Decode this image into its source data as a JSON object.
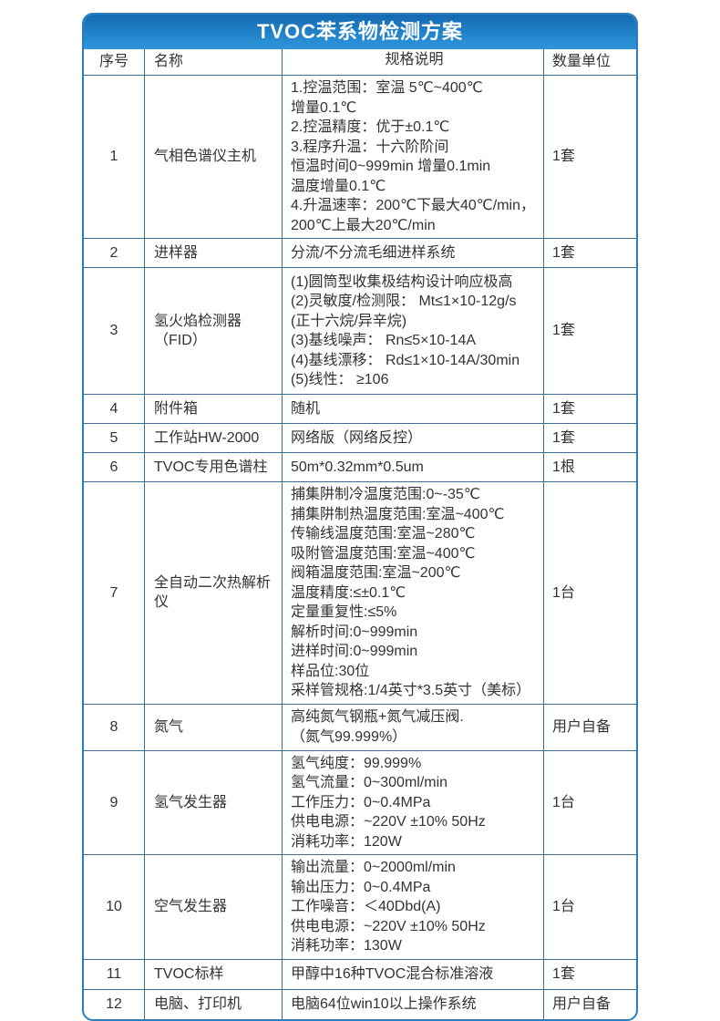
{
  "title": "TVOC苯系物检测方案",
  "colors": {
    "header_blue_top": "#1568b1",
    "header_blue_bottom": "#2e96dc",
    "grid_line": "#3e6d90",
    "outer_border": "#2b7dbd",
    "text": "#333333",
    "title_text": "#ffffff"
  },
  "table": {
    "headers": [
      "序号",
      "名称",
      "规格说明",
      "数量单位"
    ],
    "rows": [
      {
        "no": "1",
        "name": "气相色谱仪主机",
        "spec": [
          "1.控温范围：室温 5℃~400℃",
          "增量0.1℃",
          "2.控温精度：优于±0.1℃",
          "3.程序升温：十六阶阶间",
          "恒温时间0~999min 增量0.1min",
          "温度增量0.1℃",
          "4.升温速率：200℃下最大40℃/min，",
          "200℃上最大20℃/min"
        ],
        "qty": "1套"
      },
      {
        "no": "2",
        "name": "进样器",
        "spec": [
          "分流/不分流毛细进样系统"
        ],
        "qty": "1套"
      },
      {
        "no": "3",
        "name": "氢火焰检测器（FID）",
        "spec": [
          "(1)圆筒型收集极结构设计响应极高",
          "(2)灵敏度/检测限： Mt≤1×10-12g/s",
          "(正十六烷/异辛烷)",
          "(3)基线噪声： Rn≤5×10-14A",
          "(4)基线漂移： Rd≤1×10-14A/30min",
          "(5)线性： ≥106"
        ],
        "qty": "1套"
      },
      {
        "no": "4",
        "name": "附件箱",
        "spec": [
          "随机"
        ],
        "qty": "1套"
      },
      {
        "no": "5",
        "name": "工作站HW-2000",
        "spec": [
          "网络版（网络反控）"
        ],
        "qty": "1套"
      },
      {
        "no": "6",
        "name": "TVOC专用色谱柱",
        "spec": [
          "50m*0.32mm*0.5um"
        ],
        "qty": "1根"
      },
      {
        "no": "7",
        "name": "全自动二次热解析仪",
        "spec": [
          "捕集阱制冷温度范围:0~-35℃",
          "捕集阱制热温度范围:室温~400℃",
          "传输线温度范围:室温~280℃",
          "吸附管温度范围:室温~400℃",
          "阀箱温度范围:室温~200℃",
          "温度精度:≤±0.1℃",
          "定量重复性:≤5%",
          "解析时间:0~999min",
          "进样时间:0~999min",
          "样品位:30位",
          "采样管规格:1/4英寸*3.5英寸（美标）"
        ],
        "qty": "1台"
      },
      {
        "no": "8",
        "name": "氮气",
        "spec": [
          "高纯氮气钢瓶+氮气减压阀.",
          "（氮气99.999%）"
        ],
        "qty": "用户自备"
      },
      {
        "no": "9",
        "name": "氢气发生器",
        "spec": [
          "氢气纯度：99.999%",
          "氢气流量：0~300ml/min",
          "工作压力：0~0.4MPa",
          "供电电源：~220V ±10% 50Hz",
          "消耗功率：120W"
        ],
        "qty": "1台"
      },
      {
        "no": "10",
        "name": "空气发生器",
        "spec": [
          "输出流量：0~2000ml/min",
          "输出压力：0~0.4MPa",
          "工作噪音：＜40Dbd(A)",
          "供电电源：~220V ±10% 50Hz",
          "消耗功率：130W"
        ],
        "qty": "1台"
      },
      {
        "no": "11",
        "name": "TVOC标样",
        "spec": [
          "甲醇中16种TVOC混合标准溶液"
        ],
        "qty": "1套"
      },
      {
        "no": "12",
        "name": "电脑、打印机",
        "spec": [
          "电脑64位win10以上操作系统"
        ],
        "qty": "用户自备"
      }
    ]
  }
}
